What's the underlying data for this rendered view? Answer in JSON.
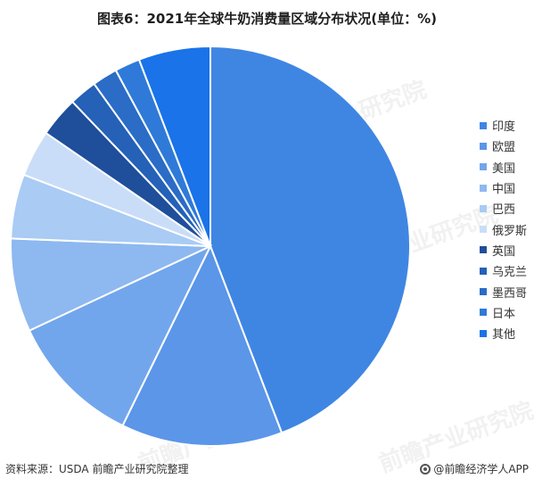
{
  "chart_data": {
    "type": "pie",
    "title": "图表6：2021年全球牛奶消费量区域分布状况(单位：%)",
    "categories": [
      "印度",
      "欧盟",
      "美国",
      "中国",
      "巴西",
      "俄罗斯",
      "英国",
      "乌克兰",
      "墨西哥",
      "日本",
      "其他"
    ],
    "values": [
      43.3,
      12.8,
      10.6,
      7.4,
      5.1,
      3.7,
      3.2,
      2.2,
      2.0,
      2.0,
      5.7
    ],
    "colors": [
      "#3f86e3",
      "#5b96e8",
      "#72a6ec",
      "#8eb8f0",
      "#a9cbf4",
      "#c9ddf8",
      "#1f4e9a",
      "#2461b7",
      "#2a6cc6",
      "#2f7ad8",
      "#1a73e8"
    ],
    "legend_position": "right"
  },
  "watermark": "前瞻产业研究院",
  "footer": {
    "source": "资料来源：USDA 前瞻产业研究院整理",
    "brand": "@前瞻经济学人APP"
  }
}
